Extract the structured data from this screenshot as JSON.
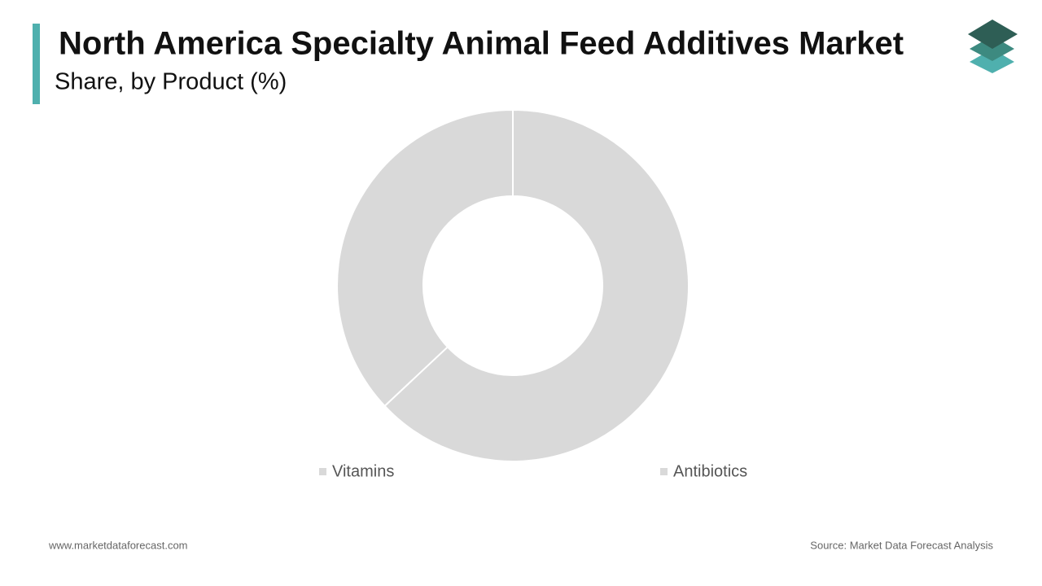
{
  "chart_data": {
    "type": "donut",
    "title": "North America Specialty Animal Feed Additives Market",
    "subtitle": "Share, by Product (%)",
    "categories": [
      "Vitamins",
      "Antibiotics"
    ],
    "values": [
      63,
      37
    ],
    "colors": [
      "#d9d9d9",
      "#d9d9d9"
    ],
    "website": "www.marketdataforecast.com",
    "source": "Source: Market Data Forecast Analysis"
  }
}
